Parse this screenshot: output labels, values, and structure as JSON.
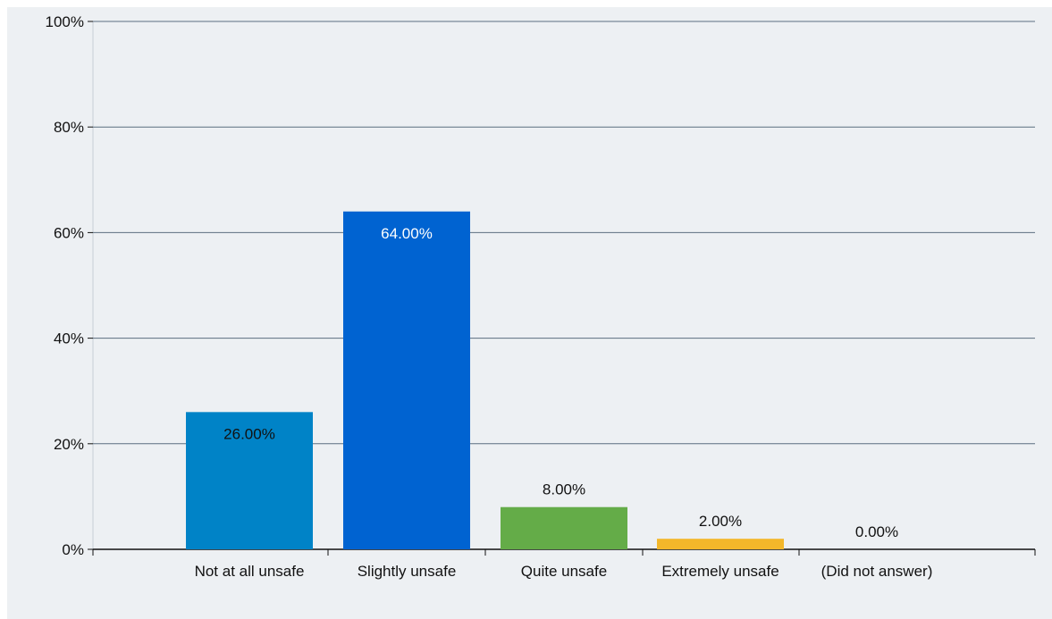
{
  "chart_data": {
    "type": "bar",
    "categories": [
      "Not at all unsafe",
      "Slightly unsafe",
      "Quite unsafe",
      "Extremely unsafe",
      "(Did not answer)"
    ],
    "values": [
      26.0,
      64.0,
      8.0,
      2.0,
      0.0
    ],
    "data_labels": [
      "26.00%",
      "64.00%",
      "8.00%",
      "2.00%",
      "0.00%"
    ],
    "ylim": [
      0,
      100
    ],
    "yticks": [
      0,
      20,
      40,
      60,
      80,
      100
    ],
    "ytick_labels": [
      "0%",
      "20%",
      "40%",
      "60%",
      "80%",
      "100%"
    ],
    "grid": true,
    "bar_colors": [
      "#0083c7",
      "#0063d1",
      "#64ac48",
      "#f3b72a",
      "#a0a0a0"
    ],
    "label_colors": [
      "#111111",
      "#ffffff",
      "#111111",
      "#111111",
      "#111111"
    ],
    "label_inside": [
      true,
      true,
      false,
      false,
      false
    ],
    "gridline_color": "#5b6e80",
    "background_color": "#edf0f3"
  }
}
